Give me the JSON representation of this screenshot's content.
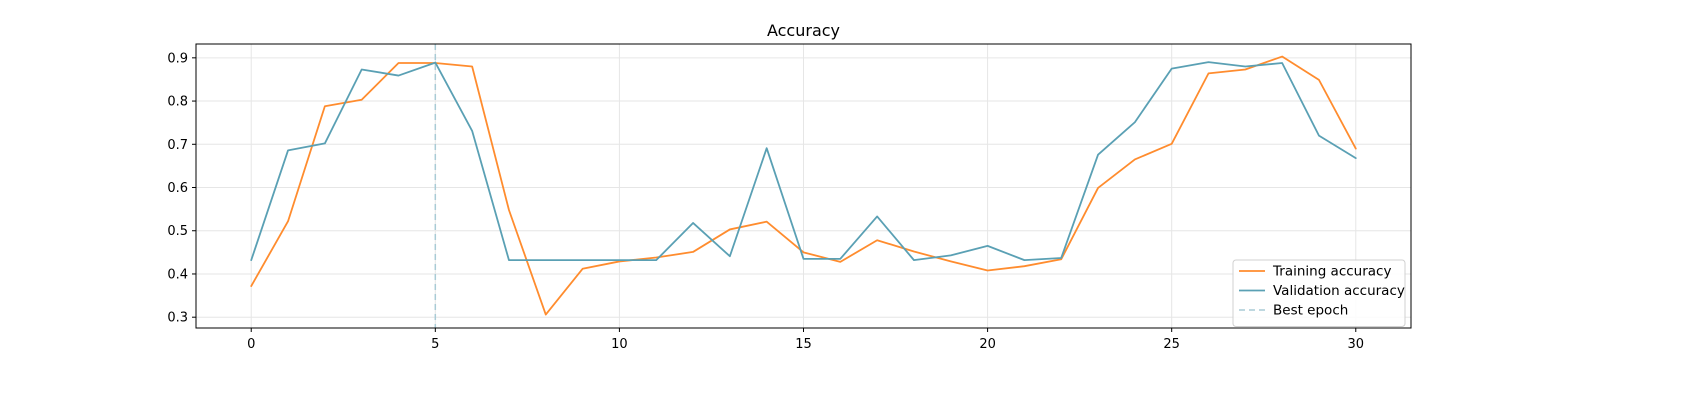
{
  "chart_data": {
    "type": "line",
    "title": "Accuracy",
    "xlabel": "",
    "ylabel": "",
    "xlim": [
      -1.5,
      31.5
    ],
    "ylim": [
      0.275,
      0.932
    ],
    "xticks": [
      0,
      5,
      10,
      15,
      20,
      25,
      30
    ],
    "yticks": [
      0.3,
      0.4,
      0.5,
      0.6,
      0.7,
      0.8,
      0.9
    ],
    "grid": true,
    "legend_position": "bottom-right",
    "x": [
      0,
      1,
      2,
      3,
      4,
      5,
      6,
      7,
      8,
      9,
      10,
      11,
      12,
      13,
      14,
      15,
      16,
      17,
      18,
      19,
      20,
      21,
      22,
      23,
      24,
      25,
      26,
      27,
      28,
      29,
      30
    ],
    "series": [
      {
        "name": "Training accuracy",
        "color": "#ff8c2e",
        "style": "solid",
        "values": [
          0.372,
          0.522,
          0.788,
          0.803,
          0.888,
          0.888,
          0.88,
          0.548,
          0.306,
          0.412,
          0.429,
          0.438,
          0.451,
          0.503,
          0.521,
          0.45,
          0.428,
          0.478,
          0.452,
          0.429,
          0.408,
          0.418,
          0.434,
          0.599,
          0.665,
          0.701,
          0.864,
          0.873,
          0.903,
          0.849,
          0.69
        ]
      },
      {
        "name": "Validation accuracy",
        "color": "#5aa0b4",
        "style": "solid",
        "values": [
          0.432,
          0.686,
          0.702,
          0.873,
          0.859,
          0.889,
          0.731,
          0.432,
          0.432,
          0.432,
          0.432,
          0.432,
          0.518,
          0.441,
          0.691,
          0.435,
          0.435,
          0.533,
          0.432,
          0.443,
          0.465,
          0.432,
          0.437,
          0.676,
          0.751,
          0.875,
          0.89,
          0.88,
          0.888,
          0.72,
          0.668
        ]
      }
    ],
    "reference_lines": [
      {
        "name": "Best epoch",
        "orientation": "vertical",
        "x": 5,
        "color": "#a9cbd6",
        "style": "dashed"
      }
    ]
  }
}
